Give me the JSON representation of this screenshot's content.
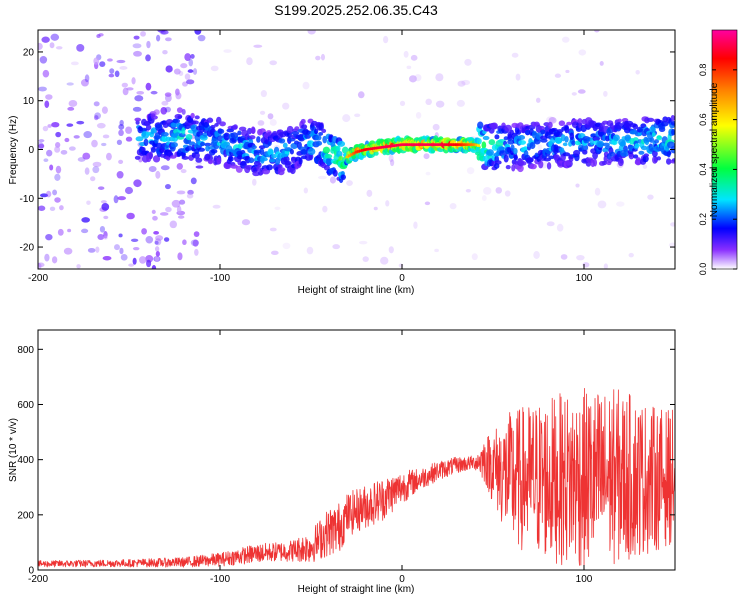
{
  "figure_title": "S199.2025.252.06.35.C43",
  "chart_data": [
    {
      "type": "heatmap",
      "title": "S199.2025.252.06.35.C43",
      "xlabel": "Height of straight line (km)",
      "ylabel": "Frequency (Hz)",
      "xlim": [
        -200,
        150
      ],
      "ylim": [
        -24.5,
        24.5
      ],
      "x_ticks": [
        -200,
        -100,
        0,
        100
      ],
      "x_tick_labels": [
        "-200",
        "-100",
        "0",
        "100"
      ],
      "y_ticks": [
        20,
        10,
        0,
        -10,
        -20
      ],
      "y_tick_labels": [
        "20",
        "10",
        "0",
        "-10",
        "-20"
      ],
      "colorbar": {
        "label": "Normalized spectral amplitude",
        "range": [
          0,
          0.96
        ],
        "ticks": [
          0.0,
          0.2,
          0.4,
          0.6,
          0.8
        ],
        "tick_labels": [
          "0.0",
          "0.2",
          "0.4",
          "0.6",
          "0.8"
        ],
        "colormap": [
          "#ffffff",
          "#6a00f5",
          "#0000ff",
          "#00e5ff",
          "#00ff40",
          "#ffff00",
          "#ff8000",
          "#ff0000",
          "#ff00a0"
        ]
      },
      "ridge": {
        "x": [
          -140,
          -120,
          -100,
          -90,
          -80,
          -70,
          -60,
          -52,
          -45,
          -38,
          -33,
          -30,
          -25,
          -20,
          -10,
          0,
          10,
          20,
          30,
          40,
          45,
          60,
          80,
          100,
          120,
          140,
          150
        ],
        "frequency": [
          2.5,
          2.8,
          1.5,
          0.5,
          -0.5,
          -1.0,
          0.0,
          2.0,
          1.0,
          -1.0,
          -2.0,
          -1.5,
          -0.5,
          0.0,
          0.5,
          1.0,
          1.0,
          1.0,
          1.0,
          1.0,
          0.5,
          0.5,
          1.0,
          1.5,
          1.5,
          2.0,
          2.0
        ],
        "peak_amplitude": [
          0.3,
          0.35,
          0.3,
          0.3,
          0.3,
          0.3,
          0.3,
          0.3,
          0.35,
          0.4,
          0.5,
          0.65,
          0.8,
          0.85,
          0.9,
          0.9,
          0.9,
          0.9,
          0.85,
          0.7,
          0.45,
          0.3,
          0.3,
          0.3,
          0.3,
          0.35,
          0.35
        ]
      },
      "noise_region_x": [
        -200,
        -110
      ]
    },
    {
      "type": "line",
      "xlabel": "Height of straight line (km)",
      "ylabel": "SNR (10 * v/v)",
      "xlim": [
        -200,
        150
      ],
      "ylim": [
        0,
        870
      ],
      "x_ticks": [
        -200,
        -100,
        0,
        100
      ],
      "x_tick_labels": [
        "-200",
        "-100",
        "0",
        "100"
      ],
      "y_ticks": [
        0,
        200,
        400,
        600,
        800
      ],
      "y_tick_labels": [
        "0",
        "200",
        "400",
        "600",
        "800"
      ],
      "series": [
        {
          "name": "SNR",
          "color": "#ee3333",
          "envelope_x": [
            -200,
            -150,
            -120,
            -100,
            -80,
            -70,
            -60,
            -50,
            -40,
            -35,
            -30,
            -20,
            -10,
            0,
            10,
            20,
            30,
            40,
            45,
            60,
            80,
            100,
            120,
            140,
            150
          ],
          "envelope_mean": [
            22,
            25,
            28,
            38,
            60,
            65,
            70,
            85,
            140,
            150,
            200,
            230,
            260,
            300,
            330,
            360,
            380,
            390,
            400,
            330,
            330,
            330,
            340,
            330,
            340
          ],
          "envelope_half_range": [
            12,
            14,
            18,
            25,
            35,
            35,
            40,
            60,
            90,
            95,
            80,
            80,
            80,
            60,
            40,
            35,
            30,
            25,
            80,
            250,
            300,
            330,
            320,
            260,
            240
          ]
        }
      ]
    }
  ]
}
